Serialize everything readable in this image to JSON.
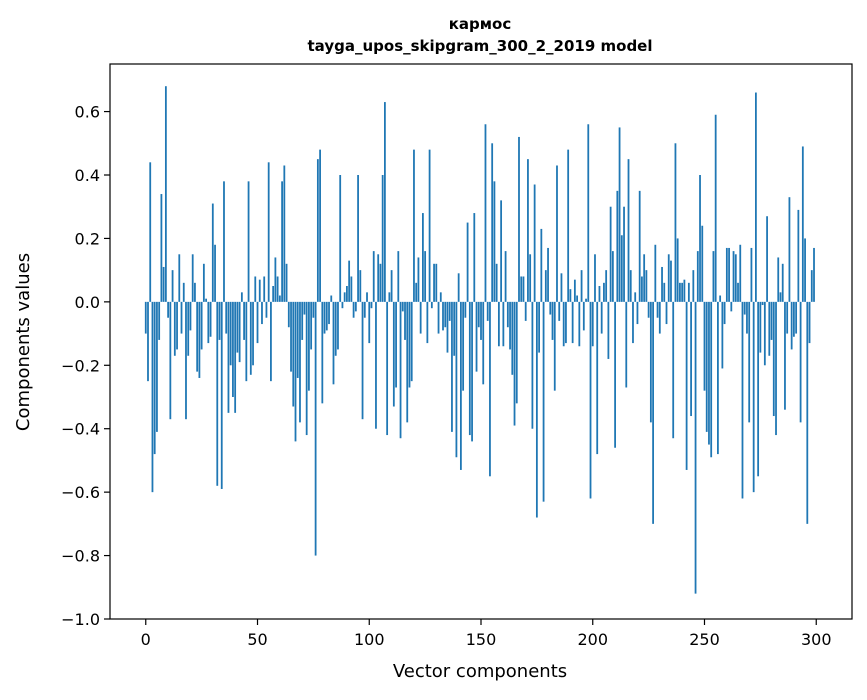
{
  "chart_data": {
    "type": "bar",
    "title": "кармос",
    "subtitle": "tayga_upos_skipgram_300_2_2019 model",
    "xlabel": "Vector components",
    "ylabel": "Components values",
    "xlim": [
      -16,
      316
    ],
    "ylim": [
      -1.0,
      0.75
    ],
    "xticks": [
      0,
      50,
      100,
      150,
      200,
      250,
      300
    ],
    "yticks": [
      -1.0,
      -0.8,
      -0.6,
      -0.4,
      -0.2,
      0.0,
      0.2,
      0.4,
      0.6
    ],
    "grid": false,
    "bar_color": "#1f77b4",
    "x": [
      0,
      1,
      2,
      3,
      4,
      5,
      6,
      7,
      8,
      9,
      10,
      11,
      12,
      13,
      14,
      15,
      16,
      17,
      18,
      19,
      20,
      21,
      22,
      23,
      24,
      25,
      26,
      27,
      28,
      29,
      30,
      31,
      32,
      33,
      34,
      35,
      36,
      37,
      38,
      39,
      40,
      41,
      42,
      43,
      44,
      45,
      46,
      47,
      48,
      49,
      50,
      51,
      52,
      53,
      54,
      55,
      56,
      57,
      58,
      59,
      60,
      61,
      62,
      63,
      64,
      65,
      66,
      67,
      68,
      69,
      70,
      71,
      72,
      73,
      74,
      75,
      76,
      77,
      78,
      79,
      80,
      81,
      82,
      83,
      84,
      85,
      86,
      87,
      88,
      89,
      90,
      91,
      92,
      93,
      94,
      95,
      96,
      97,
      98,
      99,
      100,
      101,
      102,
      103,
      104,
      105,
      106,
      107,
      108,
      109,
      110,
      111,
      112,
      113,
      114,
      115,
      116,
      117,
      118,
      119,
      120,
      121,
      122,
      123,
      124,
      125,
      126,
      127,
      128,
      129,
      130,
      131,
      132,
      133,
      134,
      135,
      136,
      137,
      138,
      139,
      140,
      141,
      142,
      143,
      144,
      145,
      146,
      147,
      148,
      149,
      150,
      151,
      152,
      153,
      154,
      155,
      156,
      157,
      158,
      159,
      160,
      161,
      162,
      163,
      164,
      165,
      166,
      167,
      168,
      169,
      170,
      171,
      172,
      173,
      174,
      175,
      176,
      177,
      178,
      179,
      180,
      181,
      182,
      183,
      184,
      185,
      186,
      187,
      188,
      189,
      190,
      191,
      192,
      193,
      194,
      195,
      196,
      197,
      198,
      199,
      200,
      201,
      202,
      203,
      204,
      205,
      206,
      207,
      208,
      209,
      210,
      211,
      212,
      213,
      214,
      215,
      216,
      217,
      218,
      219,
      220,
      221,
      222,
      223,
      224,
      225,
      226,
      227,
      228,
      229,
      230,
      231,
      232,
      233,
      234,
      235,
      236,
      237,
      238,
      239,
      240,
      241,
      242,
      243,
      244,
      245,
      246,
      247,
      248,
      249,
      250,
      251,
      252,
      253,
      254,
      255,
      256,
      257,
      258,
      259,
      260,
      261,
      262,
      263,
      264,
      265,
      266,
      267,
      268,
      269,
      270,
      271,
      272,
      273,
      274,
      275,
      276,
      277,
      278,
      279,
      280,
      281,
      282,
      283,
      284,
      285,
      286,
      287,
      288,
      289,
      290,
      291,
      292,
      293,
      294,
      295,
      296,
      297,
      298,
      299
    ],
    "values": [
      -0.1,
      -0.25,
      0.44,
      -0.6,
      -0.48,
      -0.41,
      -0.12,
      0.34,
      0.11,
      0.68,
      -0.05,
      -0.37,
      0.1,
      -0.17,
      -0.15,
      0.15,
      -0.1,
      0.06,
      -0.37,
      -0.17,
      -0.09,
      0.15,
      0.06,
      -0.22,
      -0.24,
      -0.15,
      0.12,
      0.01,
      -0.13,
      -0.11,
      0.31,
      0.18,
      -0.58,
      -0.12,
      -0.59,
      0.38,
      -0.1,
      -0.35,
      -0.2,
      -0.3,
      -0.35,
      -0.16,
      -0.19,
      0.03,
      -0.12,
      -0.25,
      0.38,
      -0.23,
      -0.2,
      0.08,
      -0.13,
      0.07,
      -0.07,
      0.08,
      -0.05,
      0.44,
      -0.25,
      0.05,
      0.14,
      0.08,
      0.02,
      0.38,
      0.43,
      0.12,
      -0.08,
      -0.22,
      -0.33,
      -0.44,
      -0.24,
      -0.38,
      -0.12,
      -0.04,
      -0.42,
      -0.28,
      -0.15,
      -0.05,
      -0.8,
      0.45,
      0.48,
      -0.32,
      -0.1,
      -0.09,
      -0.07,
      0.02,
      -0.26,
      -0.17,
      -0.15,
      0.4,
      -0.02,
      0.03,
      0.05,
      0.13,
      0.08,
      -0.05,
      -0.03,
      0.4,
      0.1,
      -0.37,
      -0.05,
      0.03,
      -0.13,
      -0.02,
      0.16,
      -0.4,
      0.15,
      0.12,
      0.4,
      0.63,
      -0.42,
      0.03,
      0.1,
      -0.33,
      -0.27,
      0.16,
      -0.43,
      -0.03,
      -0.12,
      -0.38,
      -0.27,
      -0.25,
      0.48,
      0.06,
      0.14,
      -0.1,
      0.28,
      0.16,
      -0.13,
      0.48,
      -0.02,
      0.12,
      0.12,
      -0.1,
      0.03,
      -0.09,
      -0.08,
      -0.16,
      -0.06,
      -0.41,
      -0.17,
      -0.49,
      0.09,
      -0.53,
      -0.28,
      -0.05,
      0.25,
      -0.42,
      -0.44,
      0.28,
      -0.22,
      -0.08,
      -0.12,
      -0.26,
      0.56,
      -0.06,
      -0.55,
      0.5,
      0.38,
      0.12,
      -0.14,
      0.32,
      -0.14,
      0.16,
      -0.08,
      -0.15,
      -0.23,
      -0.39,
      -0.32,
      0.52,
      0.08,
      0.08,
      -0.06,
      0.45,
      0.15,
      -0.4,
      0.37,
      -0.68,
      -0.16,
      0.23,
      -0.63,
      0.1,
      0.17,
      -0.04,
      -0.12,
      -0.28,
      0.43,
      -0.06,
      0.09,
      -0.14,
      -0.13,
      0.48,
      0.04,
      -0.13,
      0.07,
      0.02,
      -0.14,
      0.1,
      -0.09,
      0.01,
      0.56,
      -0.62,
      -0.14,
      0.15,
      -0.48,
      0.05,
      -0.1,
      0.06,
      0.1,
      -0.18,
      0.3,
      0.16,
      -0.46,
      0.35,
      0.55,
      0.21,
      0.3,
      -0.27,
      0.45,
      0.1,
      -0.13,
      0.03,
      -0.07,
      0.35,
      0.08,
      0.15,
      0.1,
      -0.05,
      -0.38,
      -0.7,
      0.18,
      -0.05,
      -0.1,
      0.11,
      0.06,
      -0.07,
      0.15,
      0.13,
      -0.43,
      0.5,
      0.2,
      0.06,
      0.06,
      0.07,
      -0.53,
      0.06,
      -0.36,
      0.1,
      -0.92,
      0.16,
      0.4,
      0.24,
      -0.28,
      -0.41,
      -0.45,
      -0.49,
      0.16,
      0.59,
      -0.48,
      0.02,
      -0.21,
      -0.07,
      0.17,
      0.17,
      -0.03,
      0.16,
      0.15,
      0.06,
      0.18,
      -0.62,
      -0.04,
      -0.1,
      -0.38,
      0.17,
      -0.6,
      0.66,
      -0.55,
      -0.16,
      -0.01,
      -0.2,
      0.27,
      -0.17,
      -0.12,
      -0.36,
      -0.42,
      0.14,
      0.03,
      0.12,
      -0.34,
      -0.1,
      0.33,
      -0.15,
      -0.11,
      -0.1,
      0.29,
      -0.38,
      0.49,
      0.2,
      -0.7,
      -0.13,
      0.1,
      0.17
    ]
  }
}
